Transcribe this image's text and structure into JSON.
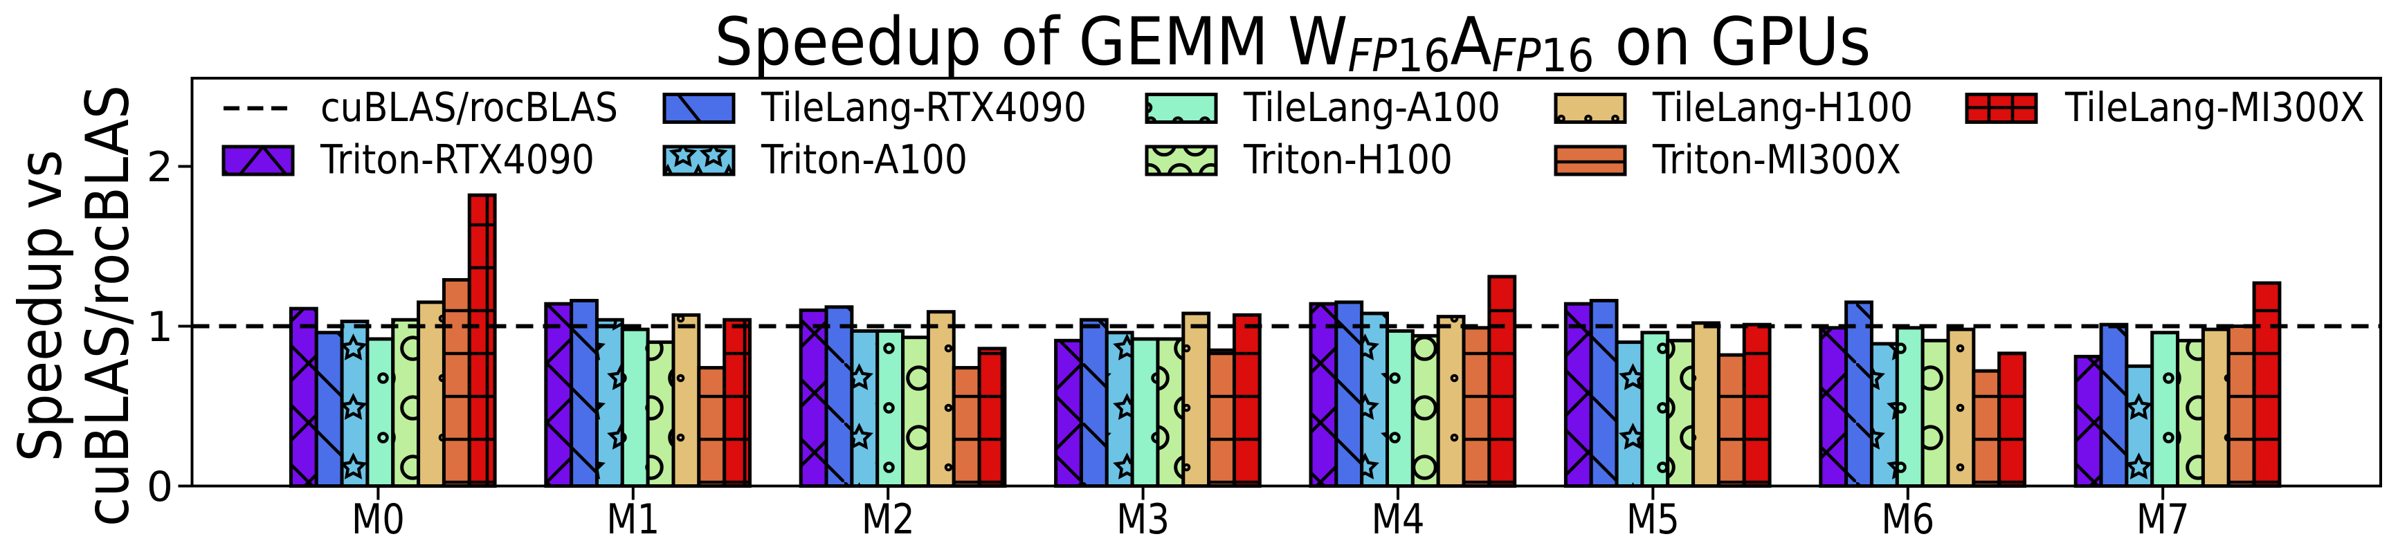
{
  "title": {
    "prefix": "Speedup of GEMM W",
    "sub1_italic": "FP",
    "sub1_num": "16",
    "mid": "A",
    "sub2_italic": "FP",
    "sub2_num": "16",
    "suffix": "on GPUs"
  },
  "y_axis": {
    "label_line1": "Speedup vs",
    "label_line2": "cuBLAS/rocBLAS",
    "tick_labels": [
      "0",
      "1",
      "2"
    ]
  },
  "x_axis": {
    "tick_labels": [
      "M0",
      "M1",
      "M2",
      "M3",
      "M4",
      "M5",
      "M6",
      "M7"
    ]
  },
  "chart_data": {
    "type": "bar",
    "title": "Speedup of GEMM W_FP16 A_FP16 on GPUs",
    "xlabel": "",
    "ylabel": "Speedup vs cuBLAS/rocBLAS",
    "categories": [
      "M0",
      "M1",
      "M2",
      "M3",
      "M4",
      "M5",
      "M6",
      "M7"
    ],
    "yticks": [
      0,
      1,
      2
    ],
    "ylim": [
      0,
      2.55
    ],
    "grid": false,
    "legend_position": "upper left, 5 columns, 2 rows, no frame",
    "baseline": {
      "label": "cuBLAS/rocBLAS",
      "value": 1.0,
      "style": "dashed",
      "color": "#000000"
    },
    "series": [
      {
        "name": "Triton-RTX4090",
        "color": "#760deb",
        "hatch": "x",
        "values": [
          1.11,
          1.14,
          1.1,
          0.91,
          1.14,
          1.14,
          0.99,
          0.81
        ]
      },
      {
        "name": "TileLang-RTX4090",
        "color": "#4a6fe8",
        "hatch": "\\",
        "values": [
          0.96,
          1.16,
          1.12,
          1.04,
          1.15,
          1.16,
          1.15,
          1.01
        ]
      },
      {
        "name": "Triton-A100",
        "color": "#6cc3e5",
        "hatch": "*",
        "values": [
          1.03,
          1.04,
          0.97,
          0.96,
          1.08,
          0.9,
          0.89,
          0.75
        ]
      },
      {
        "name": "TileLang-A100",
        "color": "#92f2c8",
        "hatch": "o",
        "values": [
          0.92,
          0.98,
          0.97,
          0.92,
          0.97,
          0.96,
          0.99,
          0.96
        ]
      },
      {
        "name": "Triton-H100",
        "color": "#beef9c",
        "hatch": "O",
        "values": [
          1.04,
          0.9,
          0.93,
          0.92,
          0.94,
          0.91,
          0.91,
          0.91
        ]
      },
      {
        "name": "TileLang-H100",
        "color": "#e2c078",
        "hatch": ".",
        "values": [
          1.15,
          1.07,
          1.09,
          1.08,
          1.06,
          1.02,
          0.98,
          0.98
        ]
      },
      {
        "name": "Triton-MI300X",
        "color": "#dd7040",
        "hatch": "-",
        "values": [
          1.29,
          0.74,
          0.74,
          0.85,
          0.99,
          0.82,
          0.72,
          1.0
        ]
      },
      {
        "name": "TileLang-MI300X",
        "color": "#db0d0d",
        "hatch": "+",
        "values": [
          1.82,
          1.04,
          0.86,
          1.07,
          1.31,
          1.01,
          0.83,
          1.27
        ]
      }
    ],
    "legend_order_row1": [
      "cuBLAS/rocBLAS",
      "TileLang-RTX4090",
      "TileLang-A100",
      "TileLang-H100",
      "TileLang-MI300X"
    ],
    "legend_order_row2": [
      "Triton-RTX4090",
      "Triton-A100",
      "Triton-H100",
      "Triton-MI300X"
    ]
  }
}
